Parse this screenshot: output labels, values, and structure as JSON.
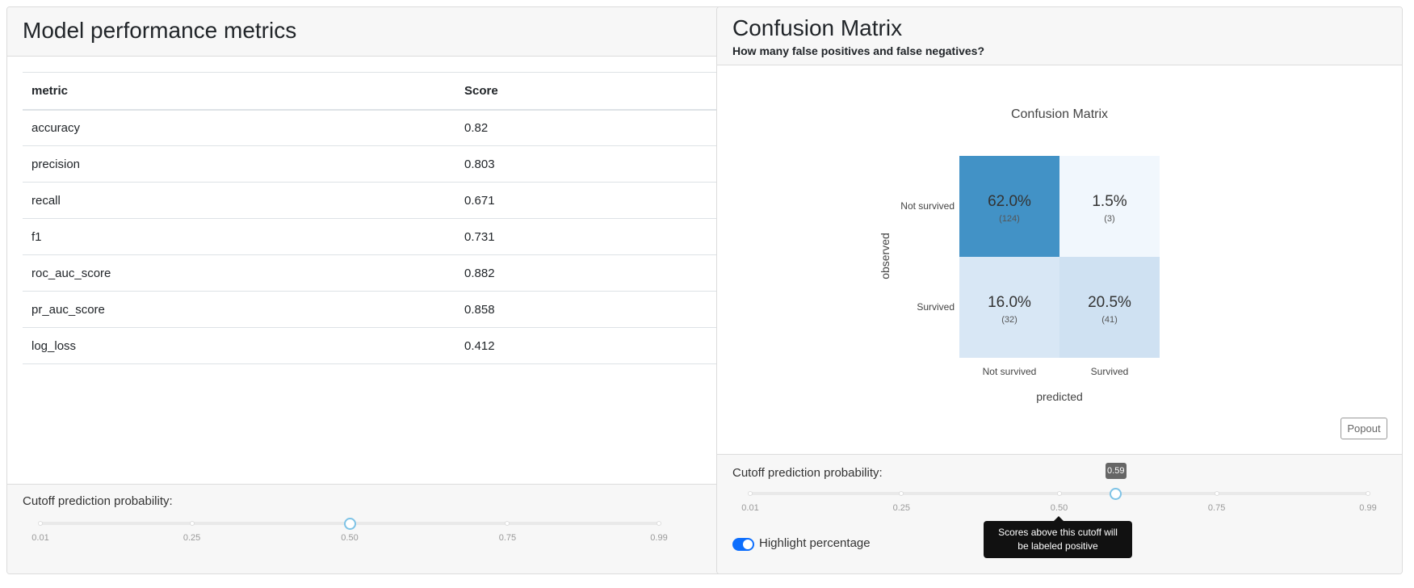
{
  "metrics_card": {
    "title": "Model performance metrics",
    "columns": [
      "metric",
      "Score"
    ],
    "rows": [
      [
        "accuracy",
        "0.82"
      ],
      [
        "precision",
        "0.803"
      ],
      [
        "recall",
        "0.671"
      ],
      [
        "f1",
        "0.731"
      ],
      [
        "roc_auc_score",
        "0.882"
      ],
      [
        "pr_auc_score",
        "0.858"
      ],
      [
        "log_loss",
        "0.412"
      ]
    ],
    "cutoff": {
      "label": "Cutoff prediction probability:",
      "value": 0.5,
      "min": 0.01,
      "max": 0.99,
      "ticks": [
        "0.01",
        "0.25",
        "0.50",
        "0.75",
        "0.99"
      ]
    }
  },
  "confusion_card": {
    "title": "Confusion Matrix",
    "subtitle": "How many false positives and false negatives?",
    "popout_label": "Popout",
    "cutoff": {
      "label": "Cutoff prediction probability:",
      "value": 0.59,
      "value_label": "0.59",
      "min": 0.01,
      "max": 0.99,
      "ticks": [
        "0.01",
        "0.25",
        "0.50",
        "0.75",
        "0.99"
      ]
    },
    "tooltip": "Scores above this cutoff will be labeled positive",
    "highlight_toggle": {
      "label": "Highlight percentage",
      "on": true
    }
  },
  "chart_data": {
    "type": "heatmap",
    "title": "Confusion Matrix",
    "xlabel": "predicted",
    "ylabel": "observed",
    "x_categories": [
      "Not survived",
      "Survived"
    ],
    "y_categories": [
      "Not survived",
      "Survived"
    ],
    "cells": [
      {
        "observed": "Not survived",
        "predicted": "Not survived",
        "percent": "62.0%",
        "count": "(124)",
        "color": "#4292c6"
      },
      {
        "observed": "Not survived",
        "predicted": "Survived",
        "percent": "1.5%",
        "count": "(3)",
        "color": "#f1f7fd"
      },
      {
        "observed": "Survived",
        "predicted": "Not survived",
        "percent": "16.0%",
        "count": "(32)",
        "color": "#d8e7f5"
      },
      {
        "observed": "Survived",
        "predicted": "Survived",
        "percent": "20.5%",
        "count": "(41)",
        "color": "#cfe1f2"
      }
    ]
  }
}
